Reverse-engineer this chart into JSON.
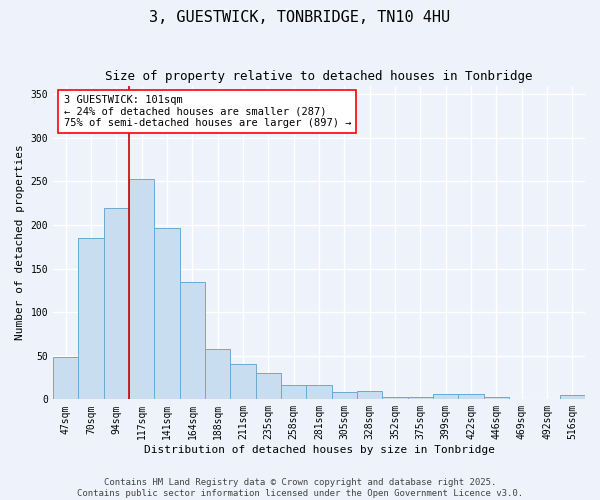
{
  "title": "3, GUESTWICK, TONBRIDGE, TN10 4HU",
  "subtitle": "Size of property relative to detached houses in Tonbridge",
  "xlabel": "Distribution of detached houses by size in Tonbridge",
  "ylabel": "Number of detached properties",
  "categories": [
    "47sqm",
    "70sqm",
    "94sqm",
    "117sqm",
    "141sqm",
    "164sqm",
    "188sqm",
    "211sqm",
    "235sqm",
    "258sqm",
    "281sqm",
    "305sqm",
    "328sqm",
    "352sqm",
    "375sqm",
    "399sqm",
    "422sqm",
    "446sqm",
    "469sqm",
    "492sqm",
    "516sqm"
  ],
  "values": [
    48,
    185,
    220,
    253,
    196,
    135,
    58,
    40,
    30,
    16,
    16,
    8,
    10,
    3,
    3,
    6,
    6,
    3,
    0,
    0,
    5
  ],
  "bar_color": "#c9ddf0",
  "bar_edge_color": "#6aaad4",
  "vline_x": 2.5,
  "vline_color": "#cc0000",
  "annotation_text": "3 GUESTWICK: 101sqm\n← 24% of detached houses are smaller (287)\n75% of semi-detached houses are larger (897) →",
  "ylim": [
    0,
    360
  ],
  "yticks": [
    0,
    50,
    100,
    150,
    200,
    250,
    300,
    350
  ],
  "footnote": "Contains HM Land Registry data © Crown copyright and database right 2025.\nContains public sector information licensed under the Open Government Licence v3.0.",
  "background_color": "#eef2fa",
  "grid_color": "#ffffff",
  "title_fontsize": 11,
  "subtitle_fontsize": 9,
  "axis_label_fontsize": 8,
  "tick_fontsize": 7,
  "annotation_fontsize": 7.5,
  "footnote_fontsize": 6.5
}
